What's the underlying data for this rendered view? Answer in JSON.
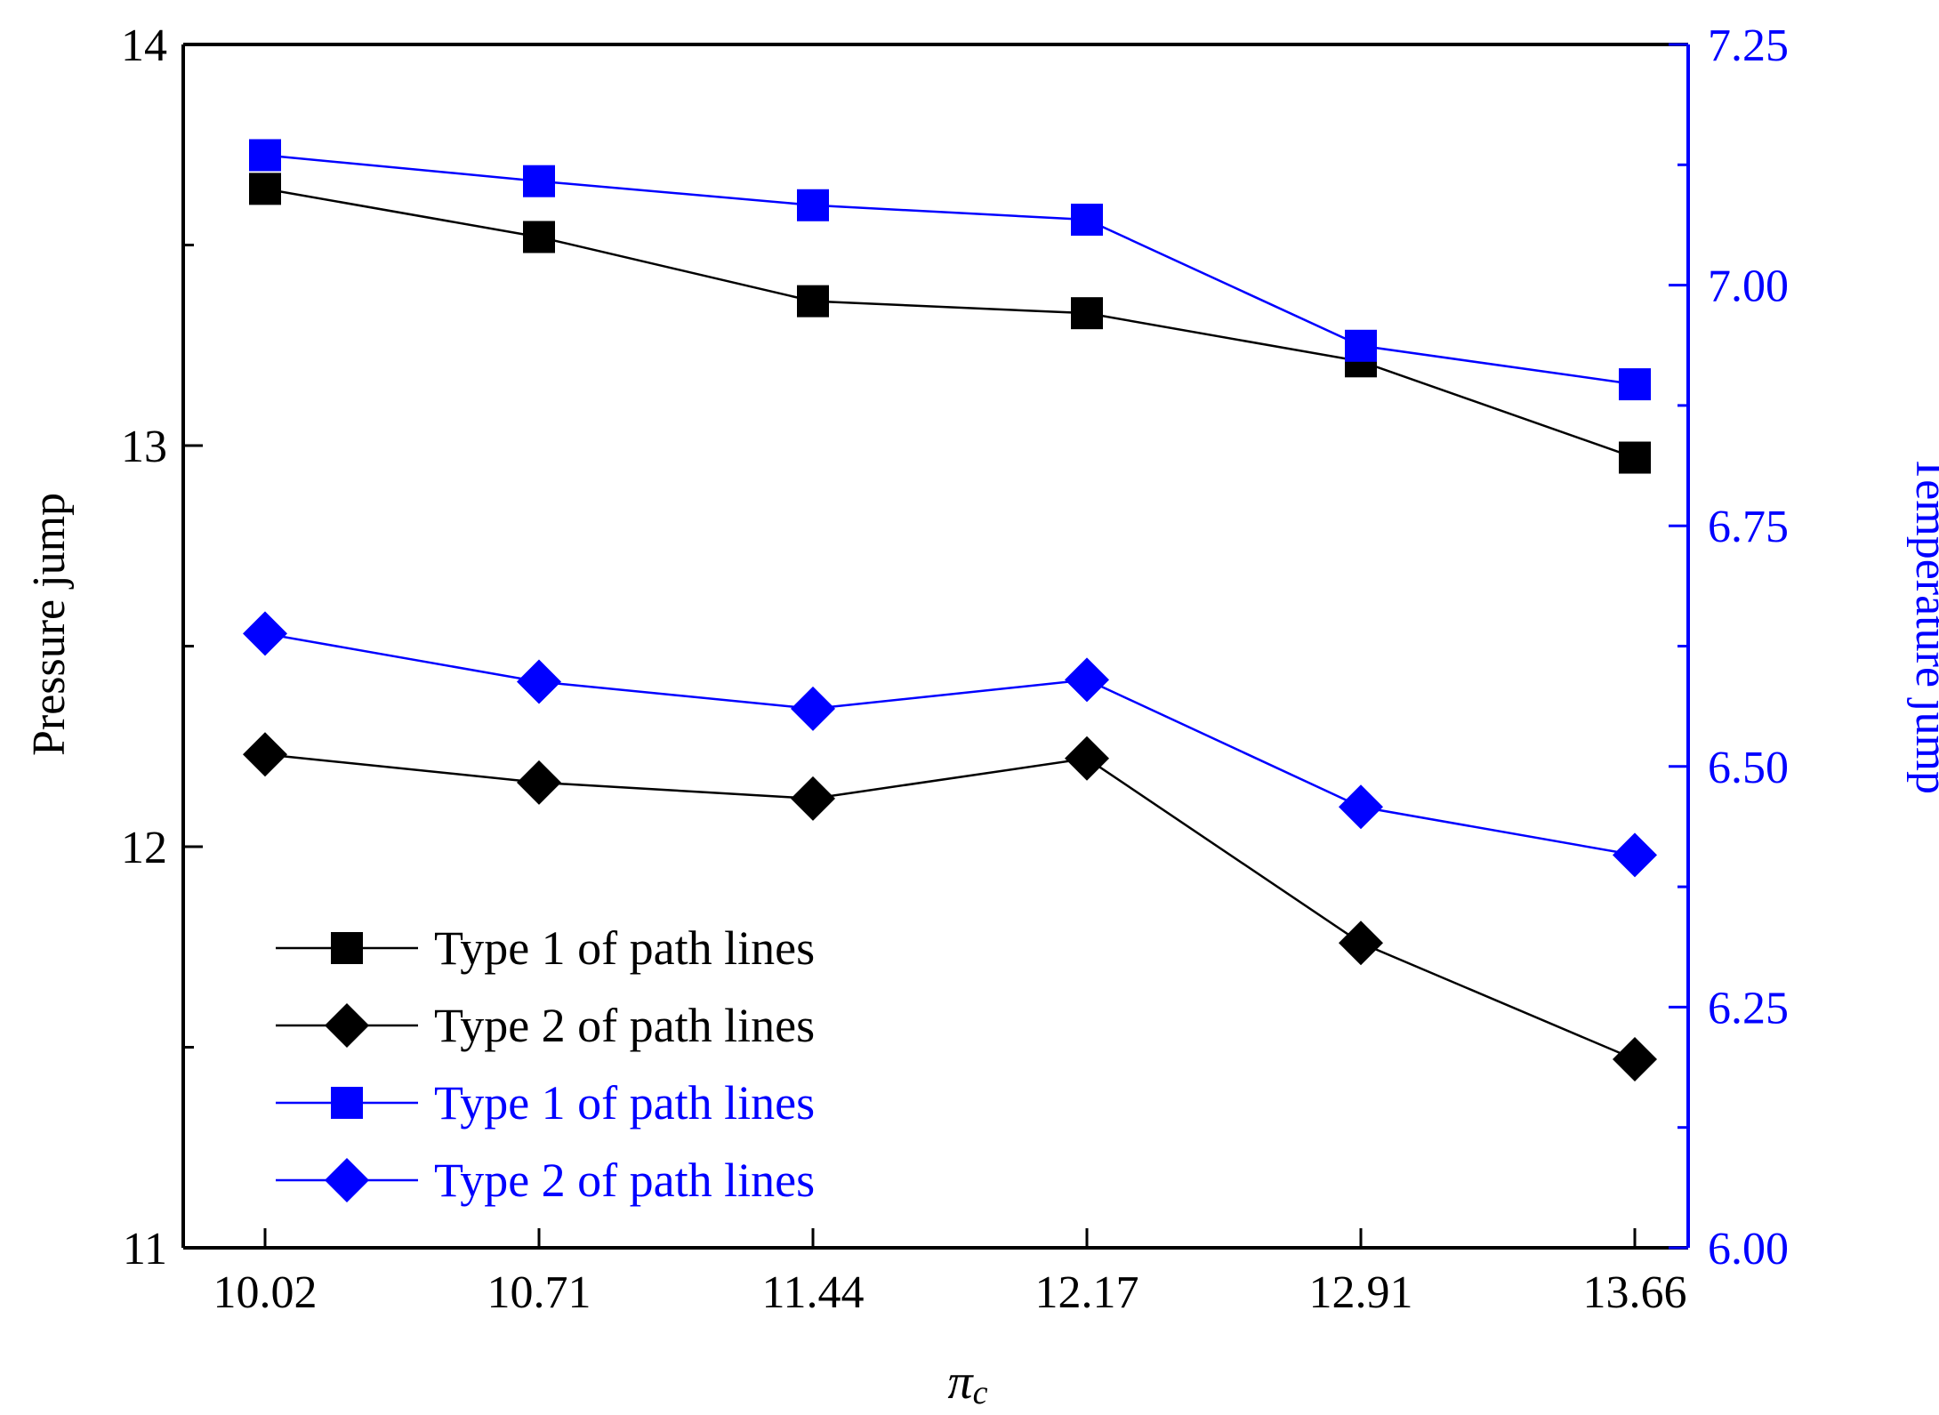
{
  "chart_data": {
    "type": "line",
    "title": "",
    "xlabel": "π",
    "xlabel_sub": "c",
    "ylabel_left": "Pressure jump",
    "ylabel_right": "Temperature jump",
    "categories": [
      "10.02",
      "10.71",
      "11.44",
      "12.17",
      "12.91",
      "13.66"
    ],
    "ylim_left": [
      11,
      14
    ],
    "yticks_left": [
      "11",
      "12",
      "13",
      "14"
    ],
    "ylim_right": [
      6.0,
      7.25
    ],
    "yticks_right": [
      "6.00",
      "6.25",
      "6.50",
      "6.75",
      "7.00",
      "7.25"
    ],
    "series": [
      {
        "name": "Type 1 of path lines",
        "axis": "left",
        "color": "#000000",
        "marker": "square",
        "values": [
          13.64,
          13.52,
          13.36,
          13.33,
          13.21,
          12.97
        ]
      },
      {
        "name": "Type 2 of path lines",
        "axis": "left",
        "color": "#000000",
        "marker": "diamond",
        "values": [
          12.23,
          12.16,
          12.12,
          12.22,
          11.76,
          11.47
        ]
      },
      {
        "name": "Type 1 of path lines",
        "axis": "right",
        "color": "#0000ff",
        "marker": "square",
        "values": [
          7.135,
          7.108,
          7.083,
          7.068,
          6.937,
          6.897
        ]
      },
      {
        "name": "Type 2 of path lines",
        "axis": "right",
        "color": "#0000ff",
        "marker": "diamond",
        "values": [
          6.638,
          6.588,
          6.56,
          6.59,
          6.458,
          6.408
        ]
      }
    ],
    "legend": "lower-left"
  }
}
